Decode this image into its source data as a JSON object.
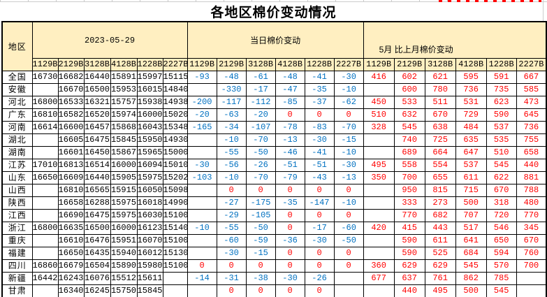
{
  "page": {
    "title": "各地区棉价变动情况"
  },
  "colors": {
    "header_bg": "#FFEFC1",
    "daily_change_text": "#0070C0",
    "monthly_change_text": "#FF0000",
    "grid_border": "#000000",
    "faint_gridline": "#CCCCCC"
  },
  "table": {
    "region_header": "地区",
    "groups": [
      {
        "label": "2023-05-29"
      },
      {
        "label": "当日棉价变动"
      },
      {
        "label": "5月 比上月棉价变动"
      }
    ],
    "sub_columns": [
      "1129B",
      "2129B",
      "3128B",
      "4128B",
      "1228B",
      "2227B"
    ],
    "rows": [
      {
        "region": "全国",
        "prices": [
          "16730",
          "16682",
          "16440",
          "15891",
          "15997",
          "15115"
        ],
        "daily_change": [
          "-93",
          "-48",
          "-61",
          "-48",
          "-41",
          "-30"
        ],
        "monthly_change": [
          "416",
          "602",
          "621",
          "595",
          "591",
          "667"
        ]
      },
      {
        "region": "安徽",
        "prices": [
          "",
          "16670",
          "16500",
          "15953",
          "16015",
          "14840"
        ],
        "daily_change": [
          "",
          "-330",
          "-17",
          "-47",
          "-35",
          "-10"
        ],
        "monthly_change": [
          "",
          "600",
          "780",
          "736",
          "735",
          "585"
        ]
      },
      {
        "region": "河北",
        "prices": [
          "16800",
          "16533",
          "16321",
          "15757",
          "15938",
          "14938"
        ],
        "daily_change": [
          "-200",
          "-117",
          "-112",
          "-85",
          "-37",
          "-62"
        ],
        "monthly_change": [
          "450",
          "533",
          "511",
          "531",
          "623",
          "473"
        ]
      },
      {
        "region": "广东",
        "prices": [
          "16810",
          "16582",
          "16520",
          "15974",
          "16000",
          "15020"
        ],
        "daily_change": [
          "-20",
          "-63",
          "-20",
          "0",
          "0",
          "0"
        ],
        "monthly_change": [
          "510",
          "632",
          "670",
          "729",
          "590",
          "645"
        ]
      },
      {
        "region": "河南",
        "prices": [
          "16614",
          "16600",
          "16457",
          "15868",
          "16043",
          "15348"
        ],
        "daily_change": [
          "-165",
          "-34",
          "-107",
          "-78",
          "-83",
          "-70"
        ],
        "monthly_change": [
          "328",
          "545",
          "638",
          "484",
          "537",
          "736"
        ]
      },
      {
        "region": "湖北",
        "prices": [
          "",
          "16605",
          "16475",
          "15845",
          "15950",
          "14930"
        ],
        "daily_change": [
          "",
          "-10",
          "-70",
          "-13",
          "-30",
          "-15"
        ],
        "monthly_change": [
          "",
          "740",
          "725",
          "635",
          "535",
          "755"
        ]
      },
      {
        "region": "湖南",
        "prices": [
          "",
          "16601",
          "16450",
          "15867",
          "15965",
          "15000"
        ],
        "daily_change": [
          "",
          "-55",
          "-50",
          "-46",
          "-41",
          "-10"
        ],
        "monthly_change": [
          "",
          "689",
          "664",
          "647",
          "510",
          "658"
        ]
      },
      {
        "region": "江苏",
        "prices": [
          "17010",
          "16813",
          "16514",
          "16000",
          "16094",
          "15010"
        ],
        "daily_change": [
          "-30",
          "-56",
          "-26",
          "-51",
          "-51",
          "-30"
        ],
        "monthly_change": [
          "495",
          "558",
          "554",
          "537",
          "545",
          "440"
        ]
      },
      {
        "region": "山东",
        "prices": [
          "16650",
          "16609",
          "16440",
          "15905",
          "15975",
          "15202"
        ],
        "daily_change": [
          "-103",
          "-10",
          "-70",
          "-79",
          "-43",
          "-13"
        ],
        "monthly_change": [
          "350",
          "700",
          "655",
          "611",
          "622",
          "881"
        ]
      },
      {
        "region": "山西",
        "prices": [
          "",
          "16810",
          "16565",
          "15915",
          "16050",
          "15098"
        ],
        "daily_change": [
          "",
          "0",
          "0",
          "0",
          "0",
          "0"
        ],
        "monthly_change": [
          "",
          "950",
          "815",
          "715",
          "670",
          "788"
        ]
      },
      {
        "region": "陕西",
        "prices": [
          "",
          "16658",
          "16288",
          "15975",
          "16018",
          "14990"
        ],
        "daily_change": [
          "",
          "-27",
          "-175",
          "-35",
          "-147",
          "-10"
        ],
        "monthly_change": [
          "",
          "333",
          "273",
          "500",
          "318",
          "480"
        ]
      },
      {
        "region": "江西",
        "prices": [
          "",
          "16690",
          "16475",
          "15975",
          "16030",
          "15100"
        ],
        "daily_change": [
          "",
          "-29",
          "-105",
          "0",
          "0",
          "0"
        ],
        "monthly_change": [
          "",
          "770",
          "682",
          "707",
          "720",
          "770"
        ]
      },
      {
        "region": "浙江",
        "prices": [
          "16800",
          "16635",
          "16500",
          "16000",
          "16123",
          "15140"
        ],
        "daily_change": [
          "-10",
          "-55",
          "-50",
          "0",
          "-17",
          "-60"
        ],
        "monthly_change": [
          "420",
          "415",
          "443",
          "517",
          "546",
          "345"
        ]
      },
      {
        "region": "重庆",
        "prices": [
          "",
          "16610",
          "16476",
          "15951",
          "16070",
          "15100"
        ],
        "daily_change": [
          "",
          "-60",
          "-59",
          "-36",
          "-30",
          "-50"
        ],
        "monthly_change": [
          "",
          "590",
          "611",
          "641",
          "650",
          "670"
        ]
      },
      {
        "region": "福建",
        "prices": [
          "",
          "16650",
          "16435",
          "15940",
          "16012",
          "15130"
        ],
        "daily_change": [
          "",
          "-30",
          "-15",
          "0",
          "0",
          "0"
        ],
        "monthly_change": [
          "",
          "590",
          "525",
          "684",
          "594",
          "760"
        ]
      },
      {
        "region": "四川",
        "prices": [
          "16860",
          "16679",
          "16504",
          "15890",
          "15980",
          "15100"
        ],
        "daily_change": [
          "0",
          "0",
          "0",
          "0",
          "0",
          "0"
        ],
        "monthly_change": [
          "360",
          "629",
          "629",
          "545",
          "570",
          "700"
        ]
      },
      {
        "region": "新疆",
        "prices": [
          "16442",
          "16243",
          "16076",
          "15512",
          "15611",
          ""
        ],
        "daily_change": [
          "-14",
          "-31",
          "-38",
          "-30",
          "-26",
          ""
        ],
        "monthly_change": [
          "677",
          "637",
          "761",
          "862",
          "785",
          ""
        ]
      },
      {
        "region": "甘肃",
        "prices": [
          "",
          "16340",
          "16245",
          "15750",
          "15845",
          ""
        ],
        "daily_change": [
          "",
          "0",
          "0",
          "0",
          "0",
          ""
        ],
        "monthly_change": [
          "",
          "440",
          "495",
          "500",
          "545",
          ""
        ]
      }
    ]
  }
}
